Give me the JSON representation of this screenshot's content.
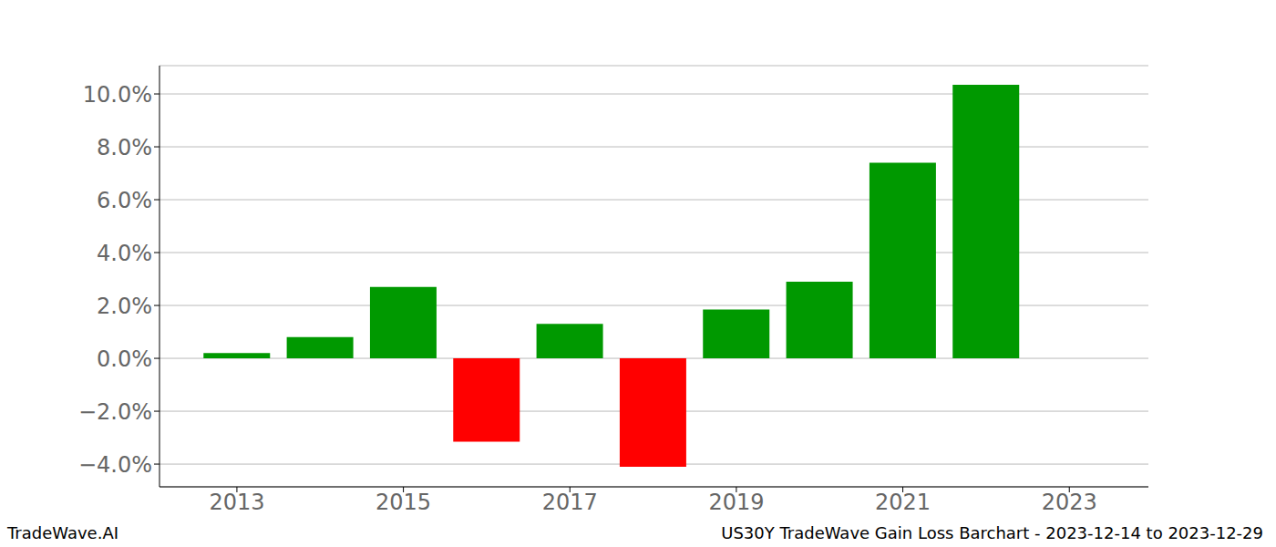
{
  "chart_data": {
    "type": "bar",
    "x": [
      2013,
      2014,
      2015,
      2016,
      2017,
      2018,
      2019,
      2020,
      2021,
      2022
    ],
    "values": [
      0.2,
      0.8,
      2.7,
      -3.15,
      1.3,
      -4.1,
      1.85,
      2.9,
      7.4,
      10.35
    ],
    "colors": [
      "#009900",
      "#009900",
      "#009900",
      "#ff0000",
      "#009900",
      "#ff0000",
      "#009900",
      "#009900",
      "#009900",
      "#009900"
    ],
    "xlim": [
      2012.07,
      2023.95
    ],
    "xticks": [
      2013,
      2015,
      2017,
      2019,
      2021,
      2023
    ],
    "ylim": [
      -4.86,
      11.07
    ],
    "yticks": [
      {
        "value": -4,
        "label": "−4.0%"
      },
      {
        "value": -2,
        "label": "−2.0%"
      },
      {
        "value": 0,
        "label": "0.0%"
      },
      {
        "value": 2,
        "label": "2.0%"
      },
      {
        "value": 4,
        "label": "4.0%"
      },
      {
        "value": 6,
        "label": "6.0%"
      },
      {
        "value": 8,
        "label": "8.0%"
      },
      {
        "value": 10,
        "label": "10.0%"
      }
    ],
    "grid": true,
    "annotations": [
      "TradeWave.AI",
      "US30Y TradeWave Gain Loss Barchart - 2023-12-14 to 2023-12-29"
    ]
  }
}
